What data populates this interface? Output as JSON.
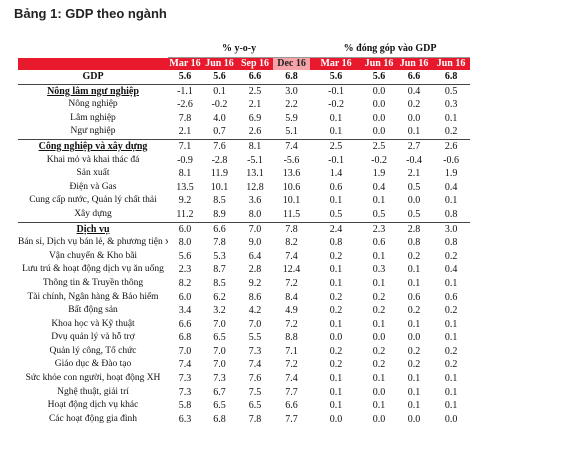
{
  "header": {
    "title": "Bảng 1: GDP theo ngành"
  },
  "table": {
    "groups": [
      "% y-o-y",
      "% đóng góp vào GDP"
    ],
    "columns": [
      "Mar 16",
      "Jun 16",
      "Sep 16",
      "Dec 16",
      "Mar 16",
      "Jun 16",
      "Jun 16",
      "Jun 16"
    ],
    "gdp": {
      "label": "GDP",
      "values": [
        "5.6",
        "5.6",
        "6.6",
        "6.8",
        "5.6",
        "5.6",
        "6.6",
        "6.8"
      ]
    },
    "sections": [
      {
        "label": "Nông lâm ngư nghiệp",
        "values": [
          "-1.1",
          "0.1",
          "2.5",
          "3.0",
          "-0.1",
          "0.0",
          "0.4",
          "0.5"
        ],
        "items": [
          {
            "label": "Nông nghiệp",
            "values": [
              "-2.6",
              "-0.2",
              "2.1",
              "2.2",
              "-0.2",
              "0.0",
              "0.2",
              "0.3"
            ]
          },
          {
            "label": "Lâm nghiệp",
            "values": [
              "7.8",
              "4.0",
              "6.9",
              "5.9",
              "0.1",
              "0.0",
              "0.0",
              "0.1"
            ]
          },
          {
            "label": "Ngư nghiệp",
            "values": [
              "2.1",
              "0.7",
              "2.6",
              "5.1",
              "0.1",
              "0.0",
              "0.1",
              "0.2"
            ]
          }
        ]
      },
      {
        "label": "Công nghiệp và xây dựng",
        "values": [
          "7.1",
          "7.6",
          "8.1",
          "7.4",
          "2.5",
          "2.5",
          "2.7",
          "2.6"
        ],
        "items": [
          {
            "label": "Khai mỏ và khai thác đá",
            "values": [
              "-0.9",
              "-2.8",
              "-5.1",
              "-5.6",
              "-0.1",
              "-0.2",
              "-0.4",
              "-0.6"
            ]
          },
          {
            "label": "Sản xuất",
            "values": [
              "8.1",
              "11.9",
              "13.1",
              "13.6",
              "1.4",
              "1.9",
              "2.1",
              "1.9"
            ]
          },
          {
            "label": "Điện và Gas",
            "values": [
              "13.5",
              "10.1",
              "12.8",
              "10.6",
              "0.6",
              "0.4",
              "0.5",
              "0.4"
            ]
          },
          {
            "label": "Cung cấp nước, Quản lý chất thải",
            "values": [
              "9.2",
              "8.5",
              "3.6",
              "10.1",
              "0.1",
              "0.1",
              "0.0",
              "0.1"
            ]
          },
          {
            "label": "Xây dựng",
            "values": [
              "11.2",
              "8.9",
              "8.0",
              "11.5",
              "0.5",
              "0.5",
              "0.5",
              "0.8"
            ]
          }
        ]
      },
      {
        "label": "Dịch vụ",
        "values": [
          "6.0",
          "6.6",
          "7.0",
          "7.8",
          "2.4",
          "2.3",
          "2.8",
          "3.0"
        ],
        "items": [
          {
            "label": "Bán sỉ, Dịch vụ bán lẻ, & phương tiện xe",
            "values": [
              "8.0",
              "7.8",
              "9.0",
              "8.2",
              "0.8",
              "0.6",
              "0.8",
              "0.8"
            ]
          },
          {
            "label": "Vận chuyển & Kho bãi",
            "values": [
              "5.6",
              "5.3",
              "6.4",
              "7.4",
              "0.2",
              "0.1",
              "0.2",
              "0.2"
            ]
          },
          {
            "label": "Lưu trú & hoạt động dịch vụ ăn uống",
            "values": [
              "2.3",
              "8.7",
              "2.8",
              "12.4",
              "0.1",
              "0.3",
              "0.1",
              "0.4"
            ]
          },
          {
            "label": "Thông tin & Truyền thông",
            "values": [
              "8.2",
              "8.5",
              "9.2",
              "7.2",
              "0.1",
              "0.1",
              "0.1",
              "0.1"
            ]
          },
          {
            "label": "Tài chính, Ngân hàng & Bảo hiểm",
            "values": [
              "6.0",
              "6.2",
              "8.6",
              "8.4",
              "0.2",
              "0.2",
              "0.6",
              "0.6"
            ]
          },
          {
            "label": "Bất động sản",
            "values": [
              "3.4",
              "3.2",
              "4.2",
              "4.9",
              "0.2",
              "0.2",
              "0.2",
              "0.2"
            ]
          },
          {
            "label": "Khoa học và Kỹ thuật",
            "values": [
              "6.6",
              "7.0",
              "7.0",
              "7.2",
              "0.1",
              "0.1",
              "0.1",
              "0.1"
            ]
          },
          {
            "label": "Dvụ quản lý và hỗ trợ",
            "values": [
              "6.8",
              "6.5",
              "5.5",
              "8.8",
              "0.0",
              "0.0",
              "0.0",
              "0.1"
            ]
          },
          {
            "label": "Quản lý công, Tổ chức",
            "values": [
              "7.0",
              "7.0",
              "7.3",
              "7.1",
              "0.2",
              "0.2",
              "0.2",
              "0.2"
            ]
          },
          {
            "label": "Giáo dục & Đào tạo",
            "values": [
              "7.4",
              "7.0",
              "7.4",
              "7.2",
              "0.2",
              "0.2",
              "0.2",
              "0.2"
            ]
          },
          {
            "label": "Sức khỏe con người, hoạt động XH",
            "values": [
              "7.3",
              "7.3",
              "7.6",
              "7.4",
              "0.1",
              "0.1",
              "0.1",
              "0.1"
            ]
          },
          {
            "label": "Nghệ thuật, giải trí",
            "values": [
              "7.3",
              "6.7",
              "7.5",
              "7.7",
              "0.1",
              "0.0",
              "0.1",
              "0.1"
            ]
          },
          {
            "label": "Hoạt động dịch vụ khác",
            "values": [
              "5.8",
              "6.5",
              "6.5",
              "6.6",
              "0.1",
              "0.1",
              "0.1",
              "0.1"
            ]
          },
          {
            "label": "Các hoạt động gia đình",
            "values": [
              "6.3",
              "6.8",
              "7.8",
              "7.7",
              "0.0",
              "0.0",
              "0.0",
              "0.0"
            ]
          }
        ]
      }
    ]
  }
}
